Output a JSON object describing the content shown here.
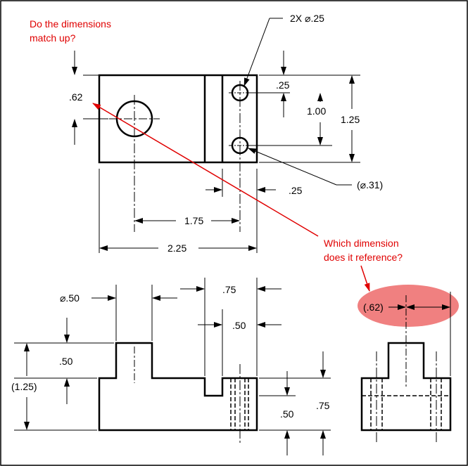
{
  "colors": {
    "line": "#000000",
    "annotation": "#e00000",
    "highlight": "#f08080"
  },
  "annotations": {
    "question_top_line1": "Do the dimensions",
    "question_top_line2": "match up?",
    "question_mid_line1": "Which dimension",
    "question_mid_line2": "does it reference?"
  },
  "top_view": {
    "holes_callout": "2X ⌀.25",
    "hole_spacing_small": ".25",
    "hole_spacing": "1.00",
    "overall_height": "1.25",
    "left_offset": ".62",
    "counterbore_dia": "(⌀.31)",
    "hole_width": ".25",
    "center_distance": "1.75",
    "overall_width": "2.25"
  },
  "front_view": {
    "boss_dia": "⌀.50",
    "slot_width": ".75",
    "slot_width_small": ".50",
    "boss_height": ".50",
    "overall_height": "(1.25)",
    "base_height_small": ".50",
    "base_height": ".75"
  },
  "side_view": {
    "ref_dim": "(.62)"
  }
}
